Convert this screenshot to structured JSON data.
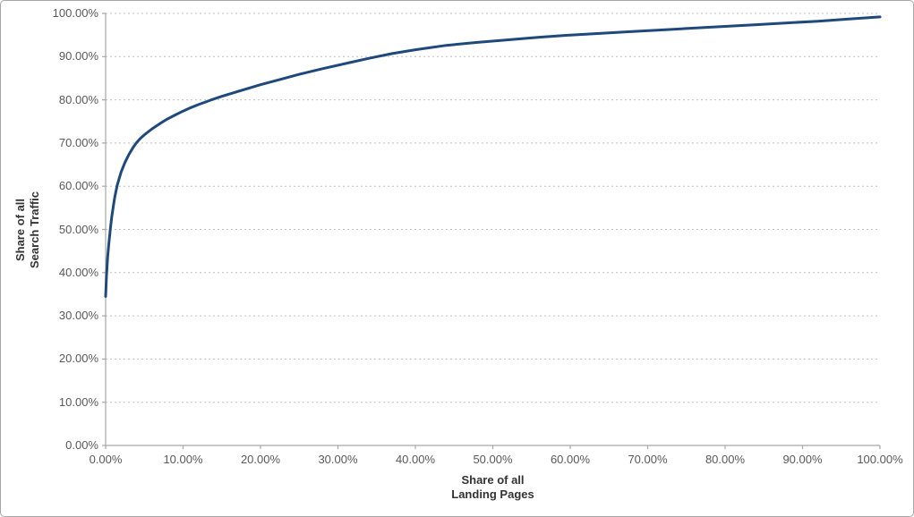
{
  "chart": {
    "y_axis_title_line1": "Share of all",
    "y_axis_title_line2": "Search Traffic",
    "x_axis_title_line1": "Share of all",
    "x_axis_title_line2": "Landing Pages"
  },
  "colors": {
    "line": "#1F497D",
    "gridline": "#BFBFBF",
    "axis": "#A6A6A6",
    "tick_label": "#595959",
    "axis_title": "#333333",
    "background": "#FFFFFF",
    "border": "#A6A6A6"
  },
  "chart_data": {
    "type": "line",
    "title": "",
    "xlabel": "Share of all Landing Pages",
    "ylabel": "Share of all Search Traffic",
    "xlim": [
      0,
      100
    ],
    "ylim": [
      0,
      100
    ],
    "grid": "horizontal-dotted",
    "legend": "none",
    "x_tick_labels": [
      "0.00%",
      "10.00%",
      "20.00%",
      "30.00%",
      "40.00%",
      "50.00%",
      "60.00%",
      "70.00%",
      "80.00%",
      "90.00%",
      "100.00%"
    ],
    "y_tick_labels": [
      "0.00%",
      "10.00%",
      "20.00%",
      "30.00%",
      "40.00%",
      "50.00%",
      "60.00%",
      "70.00%",
      "80.00%",
      "90.00%",
      "100.00%"
    ],
    "series": [
      {
        "color": "#1F497D",
        "points": [
          [
            0,
            34.5
          ],
          [
            0.1,
            39
          ],
          [
            0.25,
            43.5
          ],
          [
            0.4,
            46.5
          ],
          [
            0.6,
            50
          ],
          [
            0.8,
            53
          ],
          [
            1,
            55.5
          ],
          [
            1.2,
            57.7
          ],
          [
            1.5,
            60.3
          ],
          [
            2,
            63.3
          ],
          [
            2.5,
            65.5
          ],
          [
            3,
            67.3
          ],
          [
            3.6,
            69.1
          ],
          [
            4,
            70.1
          ],
          [
            4.5,
            71.1
          ],
          [
            5,
            71.9
          ],
          [
            6,
            73.3
          ],
          [
            7,
            74.5
          ],
          [
            8,
            75.6
          ],
          [
            9,
            76.5
          ],
          [
            10,
            77.4
          ],
          [
            11,
            78.2
          ],
          [
            12,
            78.9
          ],
          [
            13.5,
            79.9
          ],
          [
            15,
            80.8
          ],
          [
            17,
            81.9
          ],
          [
            20,
            83.5
          ],
          [
            22.5,
            84.7
          ],
          [
            25,
            85.9
          ],
          [
            28,
            87.2
          ],
          [
            31,
            88.4
          ],
          [
            34,
            89.6
          ],
          [
            37,
            90.7
          ],
          [
            40,
            91.6
          ],
          [
            44,
            92.6
          ],
          [
            48,
            93.3
          ],
          [
            52,
            93.9
          ],
          [
            56,
            94.5
          ],
          [
            60,
            95
          ],
          [
            64,
            95.4
          ],
          [
            68,
            95.8
          ],
          [
            72,
            96.2
          ],
          [
            76,
            96.6
          ],
          [
            80,
            97
          ],
          [
            84,
            97.4
          ],
          [
            88,
            97.8
          ],
          [
            92,
            98.2
          ],
          [
            96,
            98.7
          ],
          [
            100,
            99.2
          ]
        ]
      }
    ]
  }
}
